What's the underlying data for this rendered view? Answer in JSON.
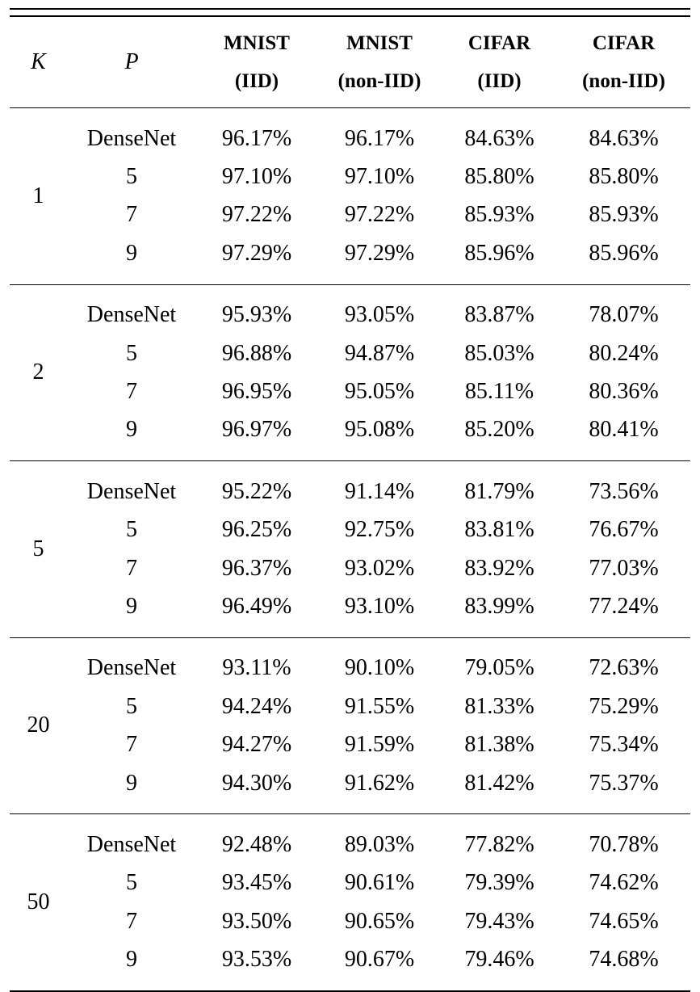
{
  "table": {
    "headers": {
      "k": "K",
      "p": "P",
      "columns": [
        {
          "line1": "MNIST",
          "line2": "(IID)"
        },
        {
          "line1": "MNIST",
          "line2": "(non-IID)"
        },
        {
          "line1": "CIFAR",
          "line2": "(IID)"
        },
        {
          "line1": "CIFAR",
          "line2": "(non-IID)"
        }
      ]
    },
    "groups": [
      {
        "k": "1",
        "rows": [
          {
            "p": "DenseNet",
            "values": [
              "96.17%",
              "96.17%",
              "84.63%",
              "84.63%"
            ]
          },
          {
            "p": "5",
            "values": [
              "97.10%",
              "97.10%",
              "85.80%",
              "85.80%"
            ]
          },
          {
            "p": "7",
            "values": [
              "97.22%",
              "97.22%",
              "85.93%",
              "85.93%"
            ]
          },
          {
            "p": "9",
            "values": [
              "97.29%",
              "97.29%",
              "85.96%",
              "85.96%"
            ]
          }
        ]
      },
      {
        "k": "2",
        "rows": [
          {
            "p": "DenseNet",
            "values": [
              "95.93%",
              "93.05%",
              "83.87%",
              "78.07%"
            ]
          },
          {
            "p": "5",
            "values": [
              "96.88%",
              "94.87%",
              "85.03%",
              "80.24%"
            ]
          },
          {
            "p": "7",
            "values": [
              "96.95%",
              "95.05%",
              "85.11%",
              "80.36%"
            ]
          },
          {
            "p": "9",
            "values": [
              "96.97%",
              "95.08%",
              "85.20%",
              "80.41%"
            ]
          }
        ]
      },
      {
        "k": "5",
        "rows": [
          {
            "p": "DenseNet",
            "values": [
              "95.22%",
              "91.14%",
              "81.79%",
              "73.56%"
            ]
          },
          {
            "p": "5",
            "values": [
              "96.25%",
              "92.75%",
              "83.81%",
              "76.67%"
            ]
          },
          {
            "p": "7",
            "values": [
              "96.37%",
              "93.02%",
              "83.92%",
              "77.03%"
            ]
          },
          {
            "p": "9",
            "values": [
              "96.49%",
              "93.10%",
              "83.99%",
              "77.24%"
            ]
          }
        ]
      },
      {
        "k": "20",
        "rows": [
          {
            "p": "DenseNet",
            "values": [
              "93.11%",
              "90.10%",
              "79.05%",
              "72.63%"
            ]
          },
          {
            "p": "5",
            "values": [
              "94.24%",
              "91.55%",
              "81.33%",
              "75.29%"
            ]
          },
          {
            "p": "7",
            "values": [
              "94.27%",
              "91.59%",
              "81.38%",
              "75.34%"
            ]
          },
          {
            "p": "9",
            "values": [
              "94.30%",
              "91.62%",
              "81.42%",
              "75.37%"
            ]
          }
        ]
      },
      {
        "k": "50",
        "rows": [
          {
            "p": "DenseNet",
            "values": [
              "92.48%",
              "89.03%",
              "77.82%",
              "70.78%"
            ]
          },
          {
            "p": "5",
            "values": [
              "93.45%",
              "90.61%",
              "79.39%",
              "74.62%"
            ]
          },
          {
            "p": "7",
            "values": [
              "93.50%",
              "90.65%",
              "79.43%",
              "74.65%"
            ]
          },
          {
            "p": "9",
            "values": [
              "93.53%",
              "90.67%",
              "79.46%",
              "74.68%"
            ]
          }
        ]
      }
    ]
  }
}
